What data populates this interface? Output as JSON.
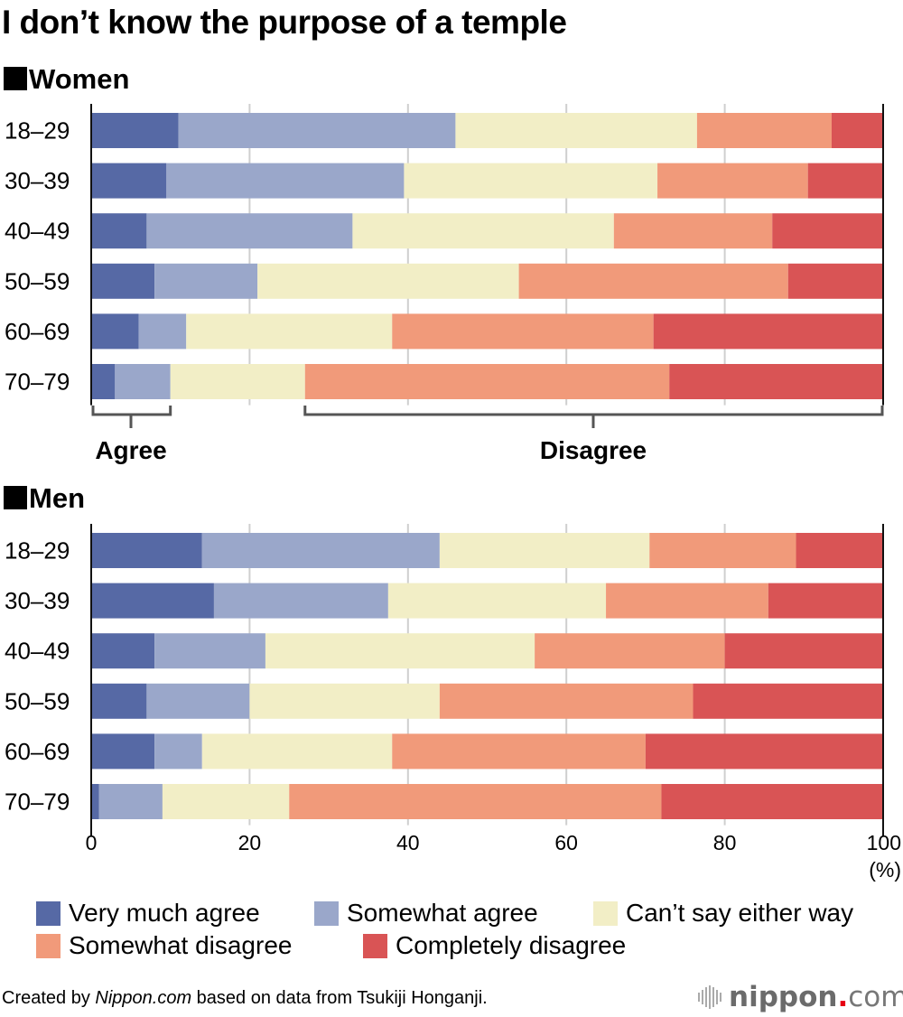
{
  "chart_data": {
    "type": "bar",
    "orientation": "horizontal-stacked",
    "title": "I don’t know the purpose of a temple",
    "xlabel": "(%)",
    "xlim": [
      0,
      100
    ],
    "xticks": [
      "0",
      "20",
      "40",
      "60",
      "80",
      "100"
    ],
    "grid": true,
    "legend_position": "bottom",
    "series_names": [
      "Very much agree",
      "Somewhat agree",
      "Can’t say either way",
      "Somewhat disagree",
      "Completely disagree"
    ],
    "colors": [
      "#5669a5",
      "#9aa7ca",
      "#f2eec6",
      "#f19a7a",
      "#d95455"
    ],
    "panels": [
      {
        "name": "Women",
        "categories": [
          "18–29",
          "30–39",
          "40–49",
          "50–59",
          "60–69",
          "70–79"
        ],
        "values": [
          [
            11,
            35,
            30.5,
            17,
            6.5
          ],
          [
            9.5,
            30,
            32,
            19,
            9.5
          ],
          [
            7,
            26,
            33,
            20,
            14
          ],
          [
            8,
            13,
            33,
            34,
            12
          ],
          [
            6,
            6,
            26,
            33,
            29
          ],
          [
            3,
            7,
            17,
            46,
            27
          ]
        ]
      },
      {
        "name": "Men",
        "categories": [
          "18–29",
          "30–39",
          "40–49",
          "50–59",
          "60–69",
          "70–79"
        ],
        "values": [
          [
            14,
            30,
            26.5,
            18.5,
            11
          ],
          [
            15.5,
            22,
            27.5,
            20.5,
            14.5
          ],
          [
            8,
            14,
            34,
            24,
            20
          ],
          [
            7,
            13,
            24,
            32,
            24
          ],
          [
            8,
            6,
            24,
            32,
            30
          ],
          [
            1,
            8,
            16,
            47,
            28
          ]
        ]
      }
    ],
    "annotations": {
      "agree_label": "Agree",
      "disagree_label": "Disagree"
    }
  },
  "sections": {
    "women": "Women",
    "men": "Men"
  },
  "footer": {
    "prefix": "Created by ",
    "source_italic": "Nippon.com",
    "suffix": " based on data from Tsukiji Honganji."
  },
  "logo": {
    "name": "nippon",
    "dot": ".",
    "tld": "com"
  }
}
